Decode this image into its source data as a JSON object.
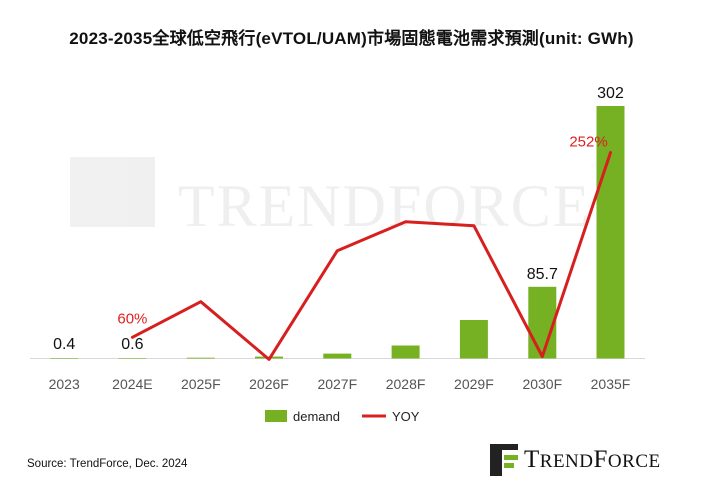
{
  "title": "2023-2035全球低空飛行(eVTOL/UAM)市場固態電池需求預測(unit: GWh)",
  "source": "Source: TrendForce, Dec. 2024",
  "brand": "TrendForce",
  "colors": {
    "bar": "#76b023",
    "line": "#d71f1f",
    "yoy_label": "#e02020"
  },
  "chart_data": {
    "type": "bar",
    "categories": [
      "2023",
      "2024E",
      "2025F",
      "2026F",
      "2027F",
      "2028F",
      "2029F",
      "2030F",
      "2035F"
    ],
    "series": [
      {
        "name": "demand",
        "type": "bar",
        "values": [
          0.4,
          0.6,
          0.9,
          2.3,
          5.9,
          15.5,
          46.0,
          85.7,
          302
        ]
      },
      {
        "name": "YOY",
        "type": "line",
        "values": [
          null,
          60,
          97,
          37,
          150,
          180,
          176,
          40,
          252
        ],
        "unit": "%"
      }
    ],
    "data_labels": [
      {
        "series": "demand",
        "index": 0,
        "text": "0.4"
      },
      {
        "series": "demand",
        "index": 1,
        "text": "0.6"
      },
      {
        "series": "demand",
        "index": 7,
        "text": "85.7"
      },
      {
        "series": "demand",
        "index": 8,
        "text": "302"
      },
      {
        "series": "YOY",
        "index": 1,
        "text": "60%"
      },
      {
        "series": "YOY",
        "index": 8,
        "text": "252%"
      }
    ],
    "ylim": [
      0,
      302
    ],
    "y2lim": [
      0,
      320
    ],
    "grid": false,
    "legend": "bottom"
  }
}
